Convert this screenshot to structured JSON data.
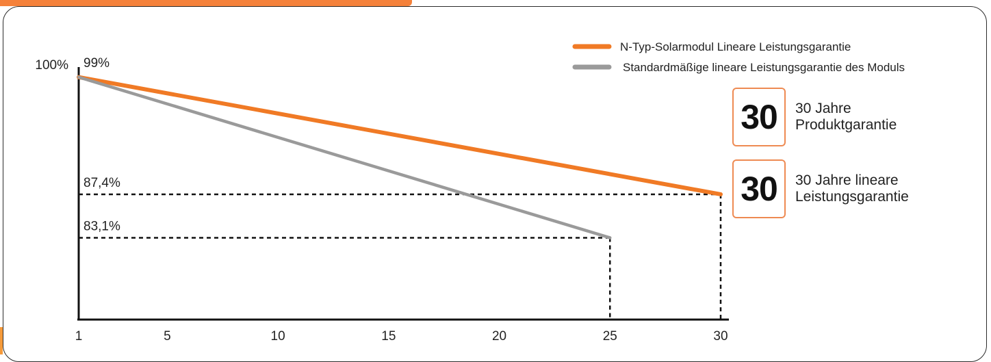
{
  "chart_data": {
    "type": "line",
    "x_ticks": [
      1,
      5,
      10,
      15,
      20,
      25,
      30
    ],
    "xlim": [
      1,
      30
    ],
    "ylim": [
      75,
      100
    ],
    "y_axis_label": "100%",
    "grid": false,
    "legend_position": "top-right",
    "series": [
      {
        "name": "N-Typ-Solarmodul Lineare Leistungsgarantie",
        "color": "#f07a25",
        "x": [
          1,
          30
        ],
        "y": [
          99,
          87.4
        ]
      },
      {
        "name": "Standardmäßige lineare Leistungsgarantie des Moduls",
        "color": "#9a9a9a",
        "x": [
          1,
          25
        ],
        "y": [
          99,
          83.1
        ]
      }
    ],
    "annotations": [
      {
        "label": "99%",
        "x": 1,
        "y": 99,
        "guide": false
      },
      {
        "label": "87,4%",
        "x": 30,
        "y": 87.4,
        "guide": true
      },
      {
        "label": "83,1%",
        "x": 25,
        "y": 83.1,
        "guide": true
      }
    ]
  },
  "badges": [
    {
      "number": "30",
      "line1": "30 Jahre",
      "line2": "Produktgarantie"
    },
    {
      "number": "30",
      "line1": "30 Jahre lineare",
      "line2": "Leistungsgarantie"
    }
  ],
  "colors": {
    "accent": "#f5813a",
    "badge_border": "#ee8a52"
  }
}
